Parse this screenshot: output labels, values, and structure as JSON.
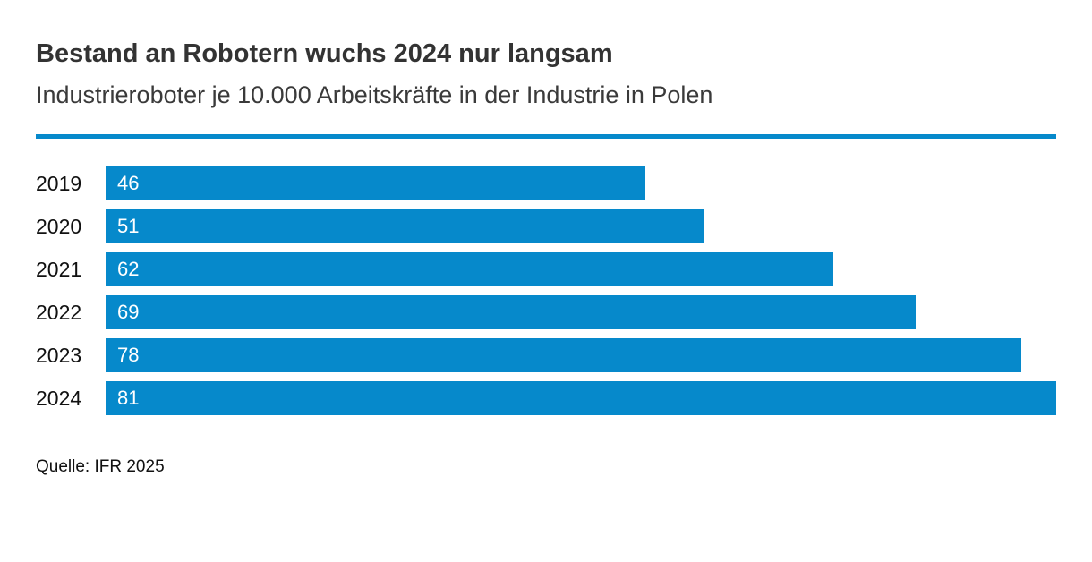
{
  "header": {
    "title": "Bestand an Robotern wuchs 2024 nur langsam",
    "subtitle": "Industrieroboter je 10.000 Arbeitskräfte in der Industrie in Polen"
  },
  "chart_data": {
    "type": "bar",
    "orientation": "horizontal",
    "title": "Bestand an Robotern wuchs 2024 nur langsam",
    "subtitle": "Industrieroboter je 10.000 Arbeitskräfte in der Industrie in Polen",
    "categories": [
      "2019",
      "2020",
      "2021",
      "2022",
      "2023",
      "2024"
    ],
    "values": [
      46,
      51,
      62,
      69,
      78,
      81
    ],
    "xlabel": "",
    "ylabel": "",
    "xlim": [
      0,
      81
    ],
    "grid": false,
    "legend": false,
    "value_labels": "inside-left-white",
    "bar_color": "#0689cb"
  },
  "footer": {
    "source": "Quelle: IFR 2025"
  },
  "colors": {
    "accent": "#0689cb",
    "title_text": "#333333",
    "subtitle_text": "#3a3a3a",
    "axis_text": "#111111",
    "value_label_text": "#ffffff",
    "background": "#ffffff"
  }
}
